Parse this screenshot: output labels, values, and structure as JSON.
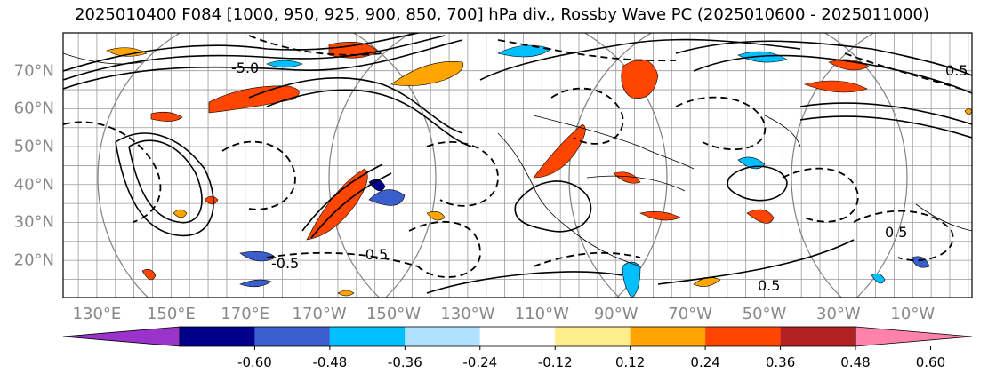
{
  "title": "2025010400 F084 [1000, 950, 925, 900, 850, 700] hPa div., Rossby Wave PC (2025010600 - 2025011000)",
  "lat_labels": [
    "70°N",
    "60°N",
    "50°N",
    "40°N",
    "30°N",
    "20°N"
  ],
  "lat_values": [
    70,
    60,
    50,
    40,
    30,
    20
  ],
  "lon_labels": [
    "130°E",
    "150°E",
    "170°E",
    "170°W",
    "150°W",
    "130°W",
    "110°W",
    "90°W",
    "70°W",
    "50°W",
    "30°W",
    "10°W"
  ],
  "lon_values": [
    130,
    150,
    170,
    190,
    210,
    230,
    250,
    270,
    290,
    310,
    330,
    350
  ],
  "contour_labels": [
    "-5.0",
    "0.5",
    "-0.5",
    "0.5",
    "-0.5",
    "0.5"
  ],
  "colorbar": {
    "ticks": [
      "-0.60",
      "-0.48",
      "-0.36",
      "-0.24",
      "-0.12",
      "0.12",
      "0.24",
      "0.36",
      "0.48",
      "0.60"
    ],
    "colors": [
      "#9933cc",
      "#00008b",
      "#3a5fcd",
      "#00bfff",
      "#b0e2ff",
      "#ffffff",
      "#ffec8b",
      "#ffa500",
      "#ff4500",
      "#b22222",
      "#ff82ab"
    ]
  }
}
